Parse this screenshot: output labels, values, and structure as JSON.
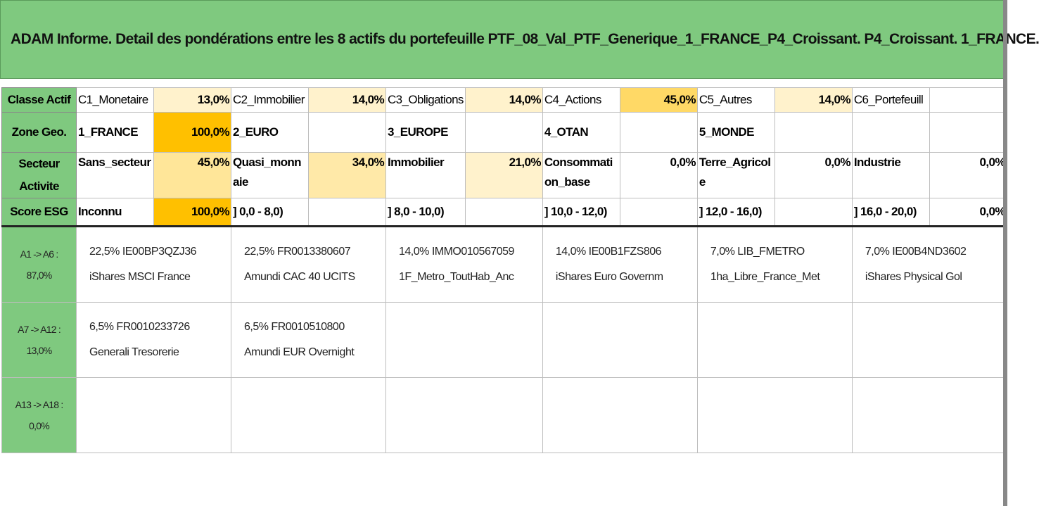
{
  "title": "ADAM Informe. Detail des pondérations entre les 8 actifs du portefeuille PTF_08_Val_PTF_Generique_1_FRANCE_P4_Croissant. P4_Croissant. 1_FRANCE.",
  "rows": {
    "classe": {
      "header": "Classe Actif",
      "items": [
        {
          "label": "C1_Monetaire",
          "pct": "13,0%"
        },
        {
          "label": "C2_Immobilier",
          "pct": "14,0%"
        },
        {
          "label": "C3_Obligations",
          "pct": "14,0%"
        },
        {
          "label": "C4_Actions",
          "pct": "45,0%"
        },
        {
          "label": "C5_Autres",
          "pct": "14,0%"
        },
        {
          "label": "C6_Portefeuill",
          "pct": ""
        }
      ]
    },
    "zone": {
      "header": "Zone Geo.",
      "items": [
        {
          "label": "1_FRANCE",
          "pct": "100,0%"
        },
        {
          "label": "2_EURO",
          "pct": ""
        },
        {
          "label": "3_EUROPE",
          "pct": ""
        },
        {
          "label": "4_OTAN",
          "pct": ""
        },
        {
          "label": "5_MONDE",
          "pct": ""
        },
        {
          "label": "",
          "pct": ""
        }
      ]
    },
    "secteur": {
      "header_line1": "Secteur",
      "header_line2": "Activite",
      "items": [
        {
          "label": "Sans_secteur",
          "pct": "45,0%"
        },
        {
          "label": "Quasi_monnaie",
          "pct": "34,0%"
        },
        {
          "label": "Immobilier",
          "pct": "21,0%"
        },
        {
          "label": "Consommation_base",
          "pct": "0,0%"
        },
        {
          "label": "Terre_Agricole",
          "pct": "0,0%"
        },
        {
          "label": "Industrie",
          "pct": "0,0%"
        }
      ]
    },
    "esg": {
      "header": "Score ESG",
      "items": [
        {
          "label": "Inconnu",
          "pct": "100,0%"
        },
        {
          "label": "] 0,0 - 8,0)",
          "pct": ""
        },
        {
          "label": "] 8,0 - 10,0)",
          "pct": ""
        },
        {
          "label": "] 10,0 - 12,0)",
          "pct": ""
        },
        {
          "label": "] 12,0 - 16,0)",
          "pct": ""
        },
        {
          "label": "] 16,0 - 20,0)",
          "pct": "0,0%"
        }
      ]
    }
  },
  "asset_rows": [
    {
      "range": "A1 -> A6 :",
      "total": "87,0%",
      "assets": [
        {
          "line1": "22,5% IE00BP3QZJ36",
          "line2": "iShares MSCI France"
        },
        {
          "line1": "22,5% FR0013380607",
          "line2": "Amundi CAC 40 UCITS"
        },
        {
          "line1": "14,0% IMMO010567059",
          "line2": "1F_Metro_ToutHab_Anc"
        },
        {
          "line1": "14,0% IE00B1FZS806",
          "line2": "iShares Euro Governm"
        },
        {
          "line1": "7,0% LIB_FMETRO",
          "line2": "1ha_Libre_France_Met"
        },
        {
          "line1": "7,0% IE00B4ND3602",
          "line2": "iShares Physical Gol"
        }
      ]
    },
    {
      "range": "A7 -> A12 :",
      "total": "13,0%",
      "assets": [
        {
          "line1": "6,5% FR0010233726",
          "line2": "Generali Tresorerie"
        },
        {
          "line1": "6,5% FR0010510800",
          "line2": "Amundi EUR Overnight"
        },
        {
          "line1": "",
          "line2": ""
        },
        {
          "line1": "",
          "line2": ""
        },
        {
          "line1": "",
          "line2": ""
        },
        {
          "line1": "",
          "line2": ""
        }
      ]
    },
    {
      "range": "A13 -> A18 :",
      "total": "0,0%",
      "assets": [
        {
          "line1": "",
          "line2": ""
        },
        {
          "line1": "",
          "line2": ""
        },
        {
          "line1": "",
          "line2": ""
        },
        {
          "line1": "",
          "line2": ""
        },
        {
          "line1": "",
          "line2": ""
        },
        {
          "line1": "",
          "line2": ""
        }
      ]
    }
  ],
  "colors": {
    "header_green": "#7fc97f",
    "heat_light": "#fff2cc",
    "heat_mid": "#ffe699",
    "heat_strong": "#ffc000"
  }
}
